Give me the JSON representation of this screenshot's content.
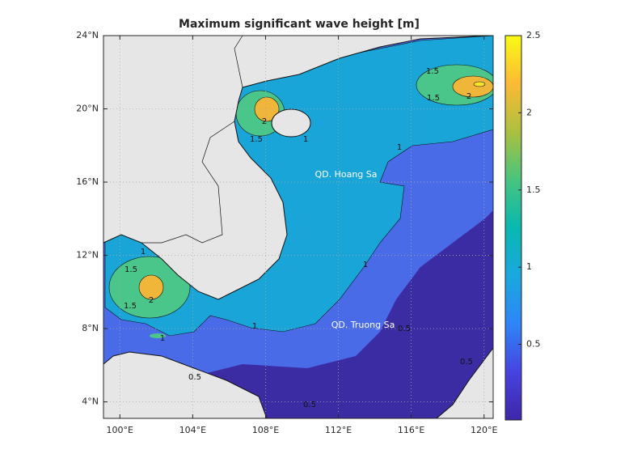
{
  "title": "Maximum significant wave height [m]",
  "map": {
    "xlim": [
      99.1,
      120.5
    ],
    "ylim": [
      3.1,
      24
    ],
    "xticks": [
      {
        "value": 100,
        "label": "100°E"
      },
      {
        "value": 104,
        "label": "104°E"
      },
      {
        "value": 108,
        "label": "108°E"
      },
      {
        "value": 112,
        "label": "112°E"
      },
      {
        "value": 116,
        "label": "116°E"
      },
      {
        "value": 120,
        "label": "120°E"
      }
    ],
    "yticks": [
      {
        "value": 4,
        "label": "4°N"
      },
      {
        "value": 8,
        "label": "8°N"
      },
      {
        "value": 12,
        "label": "12°N"
      },
      {
        "value": 16,
        "label": "16°N"
      },
      {
        "value": 20,
        "label": "20°N"
      },
      {
        "value": 24,
        "label": "24°N"
      }
    ],
    "grid": true
  },
  "colorbar": {
    "clim": [
      0.01,
      2.5
    ],
    "ticks": [
      0.5,
      1,
      1.5,
      2,
      2.5
    ]
  },
  "contour_labels": [
    "1.5",
    "1.5",
    "2",
    "2",
    "1.5",
    "1",
    "1",
    "1",
    "1.5",
    "2",
    "1.5",
    "1",
    "1",
    "1",
    "0.5",
    "0.5",
    "0.5",
    "0.5"
  ],
  "place_labels": [
    "QD. Hoang Sa",
    "QD. Truong Sa"
  ]
}
